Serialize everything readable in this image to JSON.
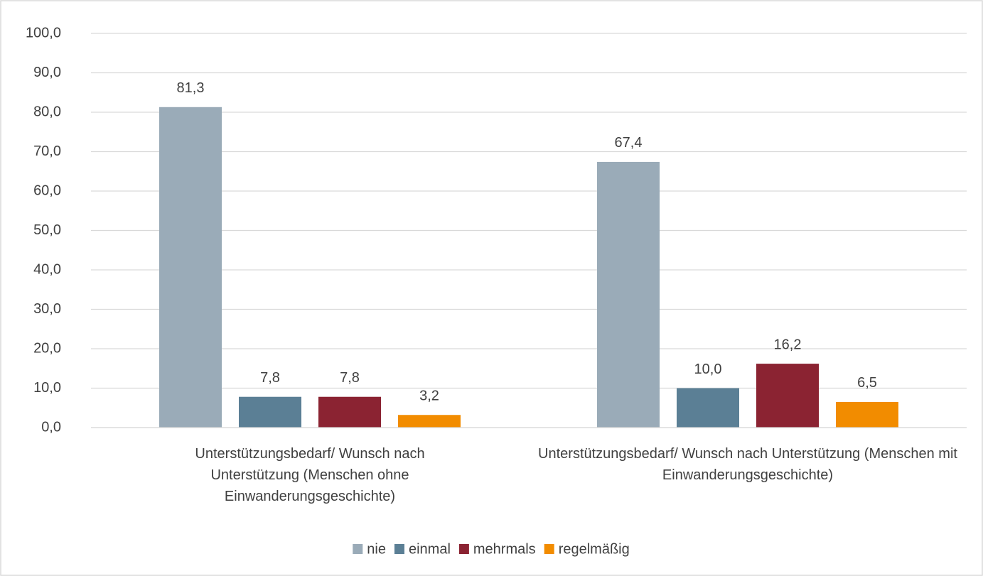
{
  "chart_data": {
    "type": "bar",
    "categories": [
      "Unterstützungsbedarf/ Wunsch nach Unterstützung (Menschen ohne Einwanderungsgeschichte)",
      "Unterstützungsbedarf/ Wunsch nach Unterstützung (Menschen mit Einwanderungsgeschichte)"
    ],
    "series": [
      {
        "name": "nie",
        "color": "#9aabb8",
        "values": [
          81.3,
          67.4
        ],
        "value_labels": [
          "81,3",
          "67,4"
        ]
      },
      {
        "name": "einmal",
        "color": "#5b7f95",
        "values": [
          7.8,
          10.0
        ],
        "value_labels": [
          "7,8",
          "10,0"
        ]
      },
      {
        "name": "mehrmals",
        "color": "#8b2332",
        "values": [
          7.8,
          16.2
        ],
        "value_labels": [
          "7,8",
          "16,2"
        ]
      },
      {
        "name": "regelmäßig",
        "color": "#f28c00",
        "values": [
          3.2,
          6.5
        ],
        "value_labels": [
          "3,2",
          "6,5"
        ]
      }
    ],
    "ylim": [
      0,
      100
    ],
    "yticks": [
      {
        "value": 0,
        "label": "0,0"
      },
      {
        "value": 10,
        "label": "10,0"
      },
      {
        "value": 20,
        "label": "20,0"
      },
      {
        "value": 30,
        "label": "30,0"
      },
      {
        "value": 40,
        "label": "40,0"
      },
      {
        "value": 50,
        "label": "50,0"
      },
      {
        "value": 60,
        "label": "60,0"
      },
      {
        "value": 70,
        "label": "70,0"
      },
      {
        "value": 80,
        "label": "80,0"
      },
      {
        "value": 90,
        "label": "90,0"
      },
      {
        "value": 100,
        "label": "100,0"
      }
    ],
    "grid": true,
    "legend": "bottom"
  }
}
